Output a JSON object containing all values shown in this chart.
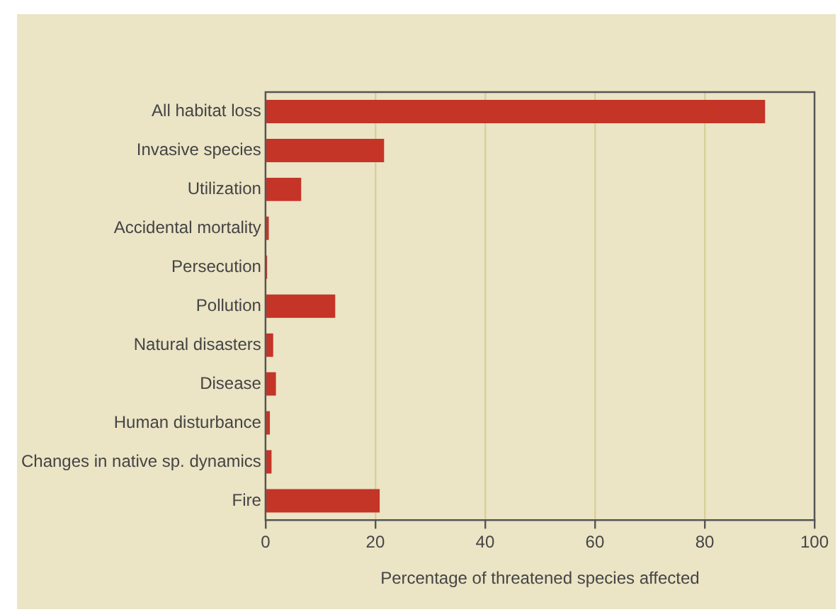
{
  "chart_data": {
    "type": "bar",
    "orientation": "horizontal",
    "xlabel": "Percentage of threatened species affected",
    "categories": [
      "All habitat loss",
      "Invasive species",
      "Utilization",
      "Accidental mortality",
      "Persecution",
      "Pollution",
      "Natural disasters",
      "Disease",
      "Human disturbance",
      "Changes in native sp. dynamics",
      "Fire"
    ],
    "values": [
      91,
      21.6,
      6.5,
      0.6,
      0.3,
      12.7,
      1.4,
      1.9,
      0.8,
      1.1,
      20.8
    ],
    "color": "#c43427",
    "xlim": [
      0,
      100
    ],
    "xticks": [
      0,
      20,
      40,
      60,
      80,
      100
    ],
    "grid": "x",
    "legend": false
  }
}
